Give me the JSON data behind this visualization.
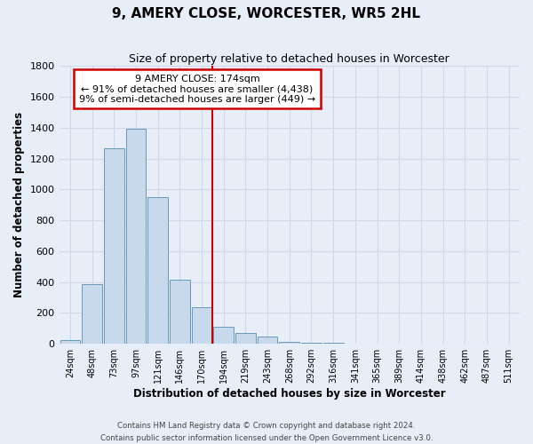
{
  "title": "9, AMERY CLOSE, WORCESTER, WR5 2HL",
  "subtitle": "Size of property relative to detached houses in Worcester",
  "xlabel": "Distribution of detached houses by size in Worcester",
  "ylabel": "Number of detached properties",
  "bar_labels": [
    "24sqm",
    "48sqm",
    "73sqm",
    "97sqm",
    "121sqm",
    "146sqm",
    "170sqm",
    "194sqm",
    "219sqm",
    "243sqm",
    "268sqm",
    "292sqm",
    "316sqm",
    "341sqm",
    "365sqm",
    "389sqm",
    "414sqm",
    "438sqm",
    "462sqm",
    "487sqm",
    "511sqm"
  ],
  "bar_values": [
    25,
    385,
    1265,
    1395,
    950,
    415,
    235,
    110,
    68,
    50,
    15,
    8,
    5,
    3,
    2,
    1,
    0,
    0,
    0,
    0,
    0
  ],
  "bar_color": "#c8d9ec",
  "bar_edge_color": "#6699bb",
  "vline_x": 6.5,
  "vline_color": "#cc0000",
  "ylim": [
    0,
    1800
  ],
  "yticks": [
    0,
    200,
    400,
    600,
    800,
    1000,
    1200,
    1400,
    1600,
    1800
  ],
  "annotation_title": "9 AMERY CLOSE: 174sqm",
  "annotation_line1": "← 91% of detached houses are smaller (4,438)",
  "annotation_line2": "9% of semi-detached houses are larger (449) →",
  "annotation_box_color": "#ffffff",
  "annotation_box_edge": "#cc0000",
  "footer_line1": "Contains HM Land Registry data © Crown copyright and database right 2024.",
  "footer_line2": "Contains public sector information licensed under the Open Government Licence v3.0.",
  "background_color": "#e8eef8",
  "grid_color": "#d0d8e8"
}
